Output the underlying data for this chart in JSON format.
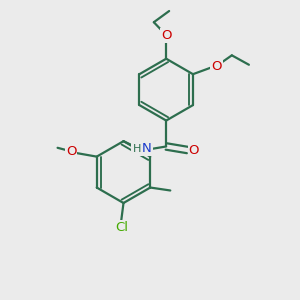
{
  "bg_color": "#ebebeb",
  "bond_color": "#2d6e4e",
  "O_color": "#cc0000",
  "N_color": "#1a3acc",
  "Cl_color": "#44aa00",
  "line_width": 1.6,
  "font_size": 9.5,
  "figsize": [
    3.0,
    3.0
  ],
  "dpi": 100,
  "xlim": [
    0,
    10
  ],
  "ylim": [
    0,
    10
  ]
}
